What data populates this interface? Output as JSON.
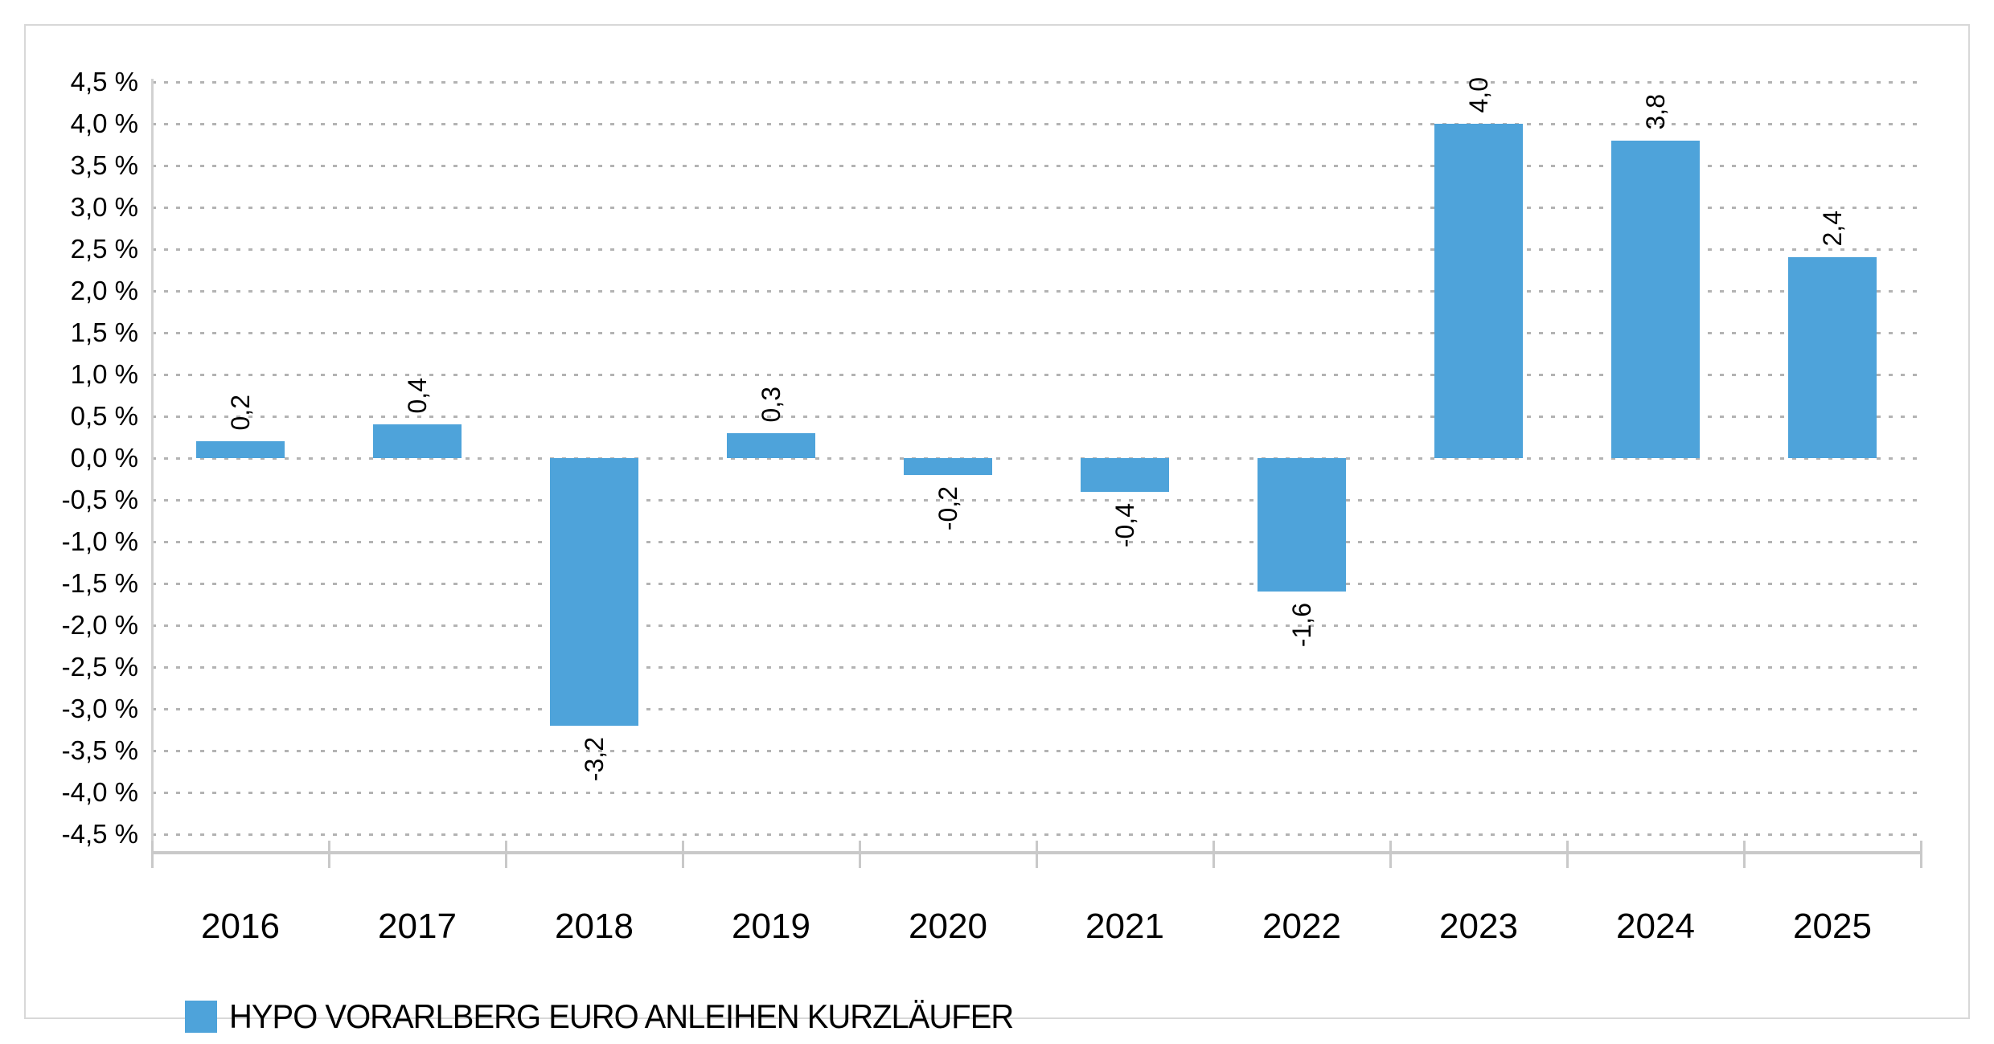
{
  "chart_data": {
    "type": "bar",
    "title": "",
    "categories": [
      "2016",
      "2017",
      "2018",
      "2019",
      "2020",
      "2021",
      "2022",
      "2023",
      "2024",
      "2025"
    ],
    "series": [
      {
        "name": "HYPO VORARLBERG EURO ANLEIHEN KURZLÄUFER",
        "values": [
          0.2,
          0.4,
          -3.2,
          0.3,
          -0.2,
          -0.4,
          -1.6,
          4.0,
          3.8,
          2.4
        ],
        "value_labels": [
          "0,2",
          "0,4",
          "-3,2",
          "0,3",
          "-0,2",
          "-0,4",
          "-1,6",
          "4,0",
          "3,8",
          "2,4"
        ]
      }
    ],
    "y_axis": {
      "min": -4.5,
      "max": 4.5,
      "step": 0.5,
      "unit": "%",
      "tick_labels": [
        "4,5 %",
        "4,0 %",
        "3,5 %",
        "3,0 %",
        "2,5 %",
        "2,0 %",
        "1,5 %",
        "1,0 %",
        "0,5 %",
        "0,0 %",
        "-0,5 %",
        "-1,0 %",
        "-1,5 %",
        "-2,0 %",
        "-2,5 %",
        "-3,0 %",
        "-3,5 %",
        "-4,0 %",
        "-4,5 %"
      ]
    },
    "grid": "horizontal-dashed",
    "legend": {
      "position": "bottom-left",
      "label": "HYPO VORARLBERG EURO ANLEIHEN KURZLÄUFER"
    },
    "colors": {
      "bar": "#4ea3da",
      "grid": "#b3b3b3",
      "axis": "#c9c9c9",
      "y_axis_line": "#d2d2d2",
      "frame": "#d8d8d8",
      "text": "#000000"
    }
  }
}
